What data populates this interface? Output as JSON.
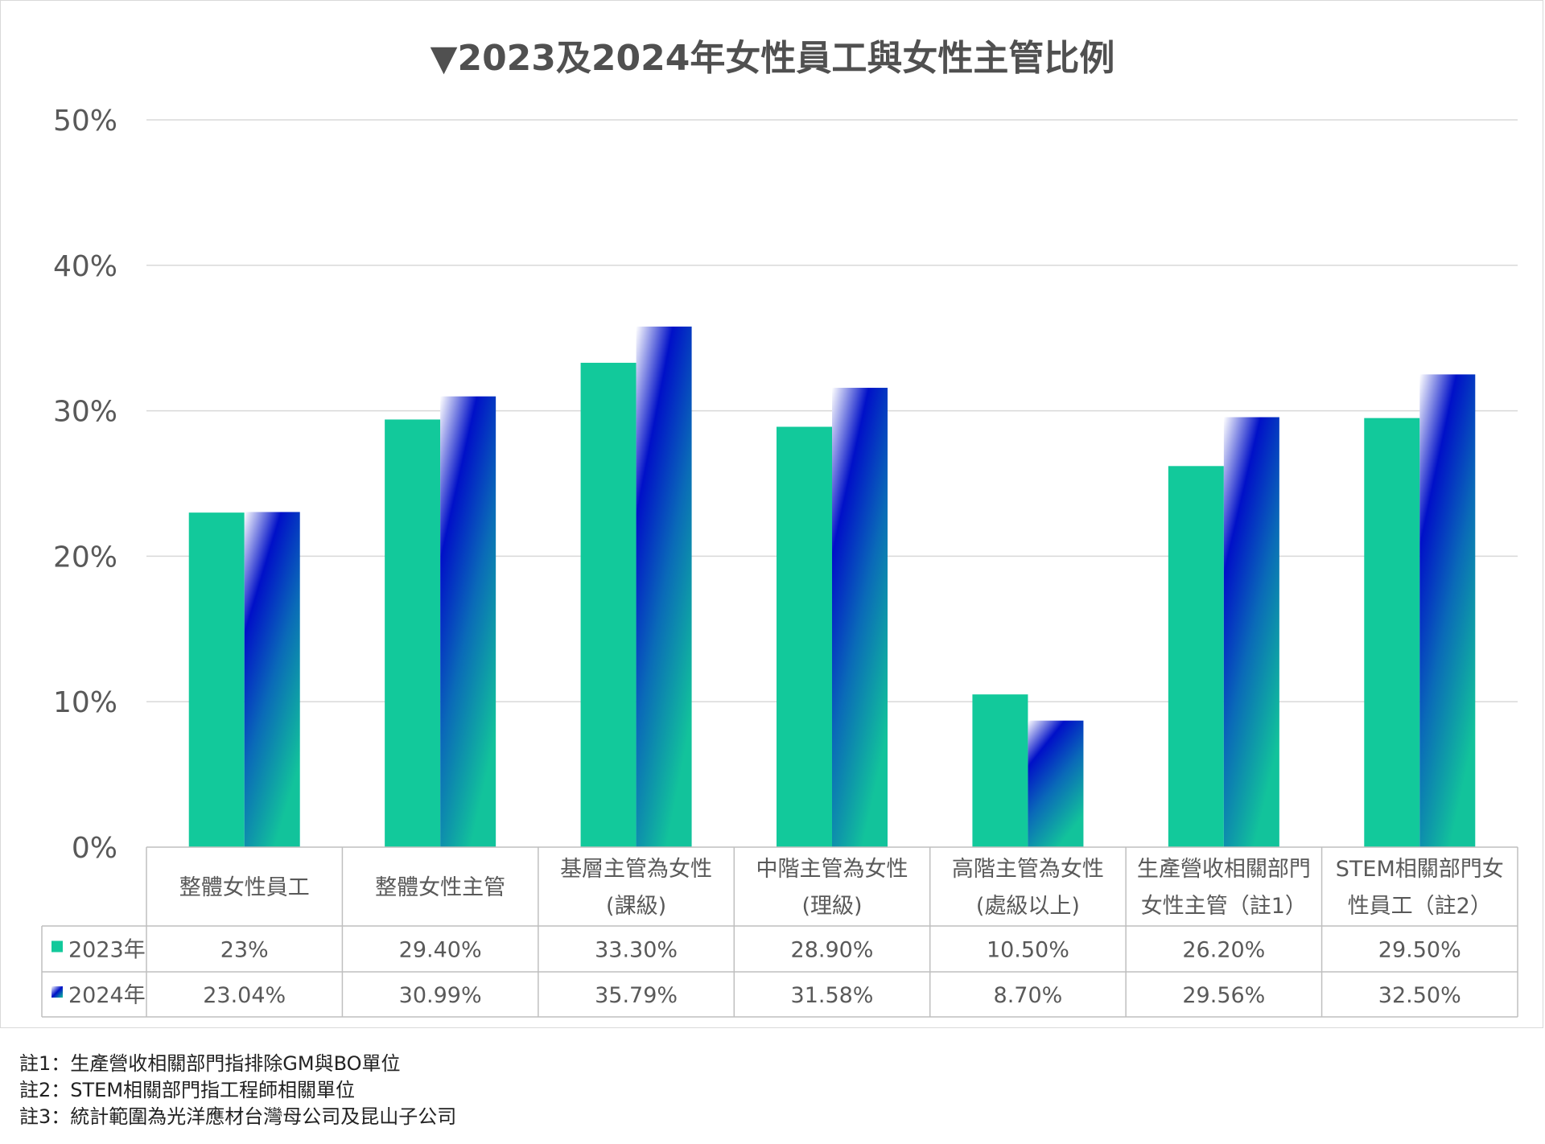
{
  "chart_data": {
    "type": "bar",
    "title": "▼2023及2024年女性員工與女性主管比例",
    "ylim": [
      0,
      50
    ],
    "yticks": [
      "0%",
      "10%",
      "20%",
      "30%",
      "40%",
      "50%"
    ],
    "ytick_values": [
      0,
      10,
      20,
      30,
      40,
      50
    ],
    "categories": [
      [
        "整體女性員工"
      ],
      [
        "整體女性主管"
      ],
      [
        "基層主管為女性",
        "(課級)"
      ],
      [
        "中階主管為女性",
        "(理級)"
      ],
      [
        "高階主管為女性",
        "(處級以上)"
      ],
      [
        "生產營收相關部門",
        "女性主管（註1）"
      ],
      [
        "STEM相關部門女",
        "性員工（註2）"
      ]
    ],
    "series": [
      {
        "name": "2023年",
        "color": "#12c99b",
        "values": [
          23,
          29.4,
          33.3,
          28.9,
          10.5,
          26.2,
          29.5
        ],
        "labels": [
          "23%",
          "29.40%",
          "33.30%",
          "28.90%",
          "10.50%",
          "26.20%",
          "29.50%"
        ]
      },
      {
        "name": "2024年",
        "color": "#0010c8",
        "values": [
          23.04,
          30.99,
          35.79,
          31.58,
          8.7,
          29.56,
          32.5
        ],
        "labels": [
          "23.04%",
          "30.99%",
          "35.79%",
          "31.58%",
          "8.70%",
          "29.56%",
          "32.50%"
        ]
      }
    ],
    "grid": true,
    "legend": "data-table"
  },
  "notes": [
    "註1：生產營收相關部門指排除GM與BO單位",
    "註2：STEM相關部門指工程師相關單位",
    "註3：統計範圍為光洋應材台灣母公司及昆山子公司"
  ]
}
